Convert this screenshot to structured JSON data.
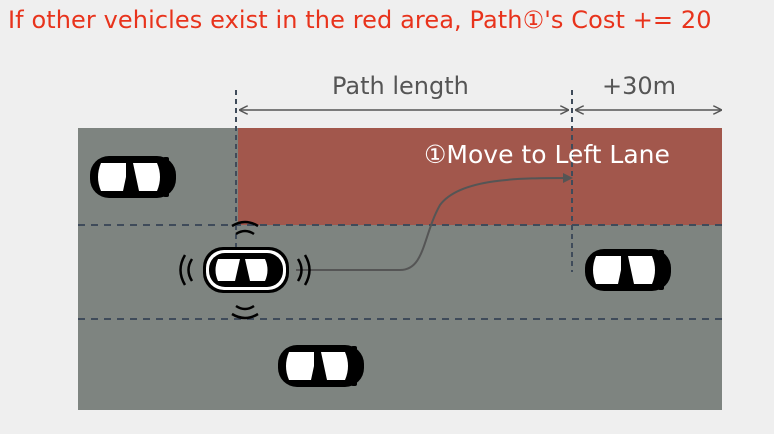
{
  "title": "If other vehicles exist in the red area, Path①'s Cost += 20",
  "path_length_label": "Path length",
  "extra_distance_label": "+30m",
  "maneuver_label": "①Move to Left Lane",
  "colors": {
    "title": "#e8331c",
    "road": "#7e8480",
    "red_area": "#a2574c",
    "lane_marking": "#3f4b5a",
    "vehicle": "#000000",
    "window": "#ffffff"
  },
  "icons": [
    "car-icon",
    "sensor-wave-icon"
  ]
}
